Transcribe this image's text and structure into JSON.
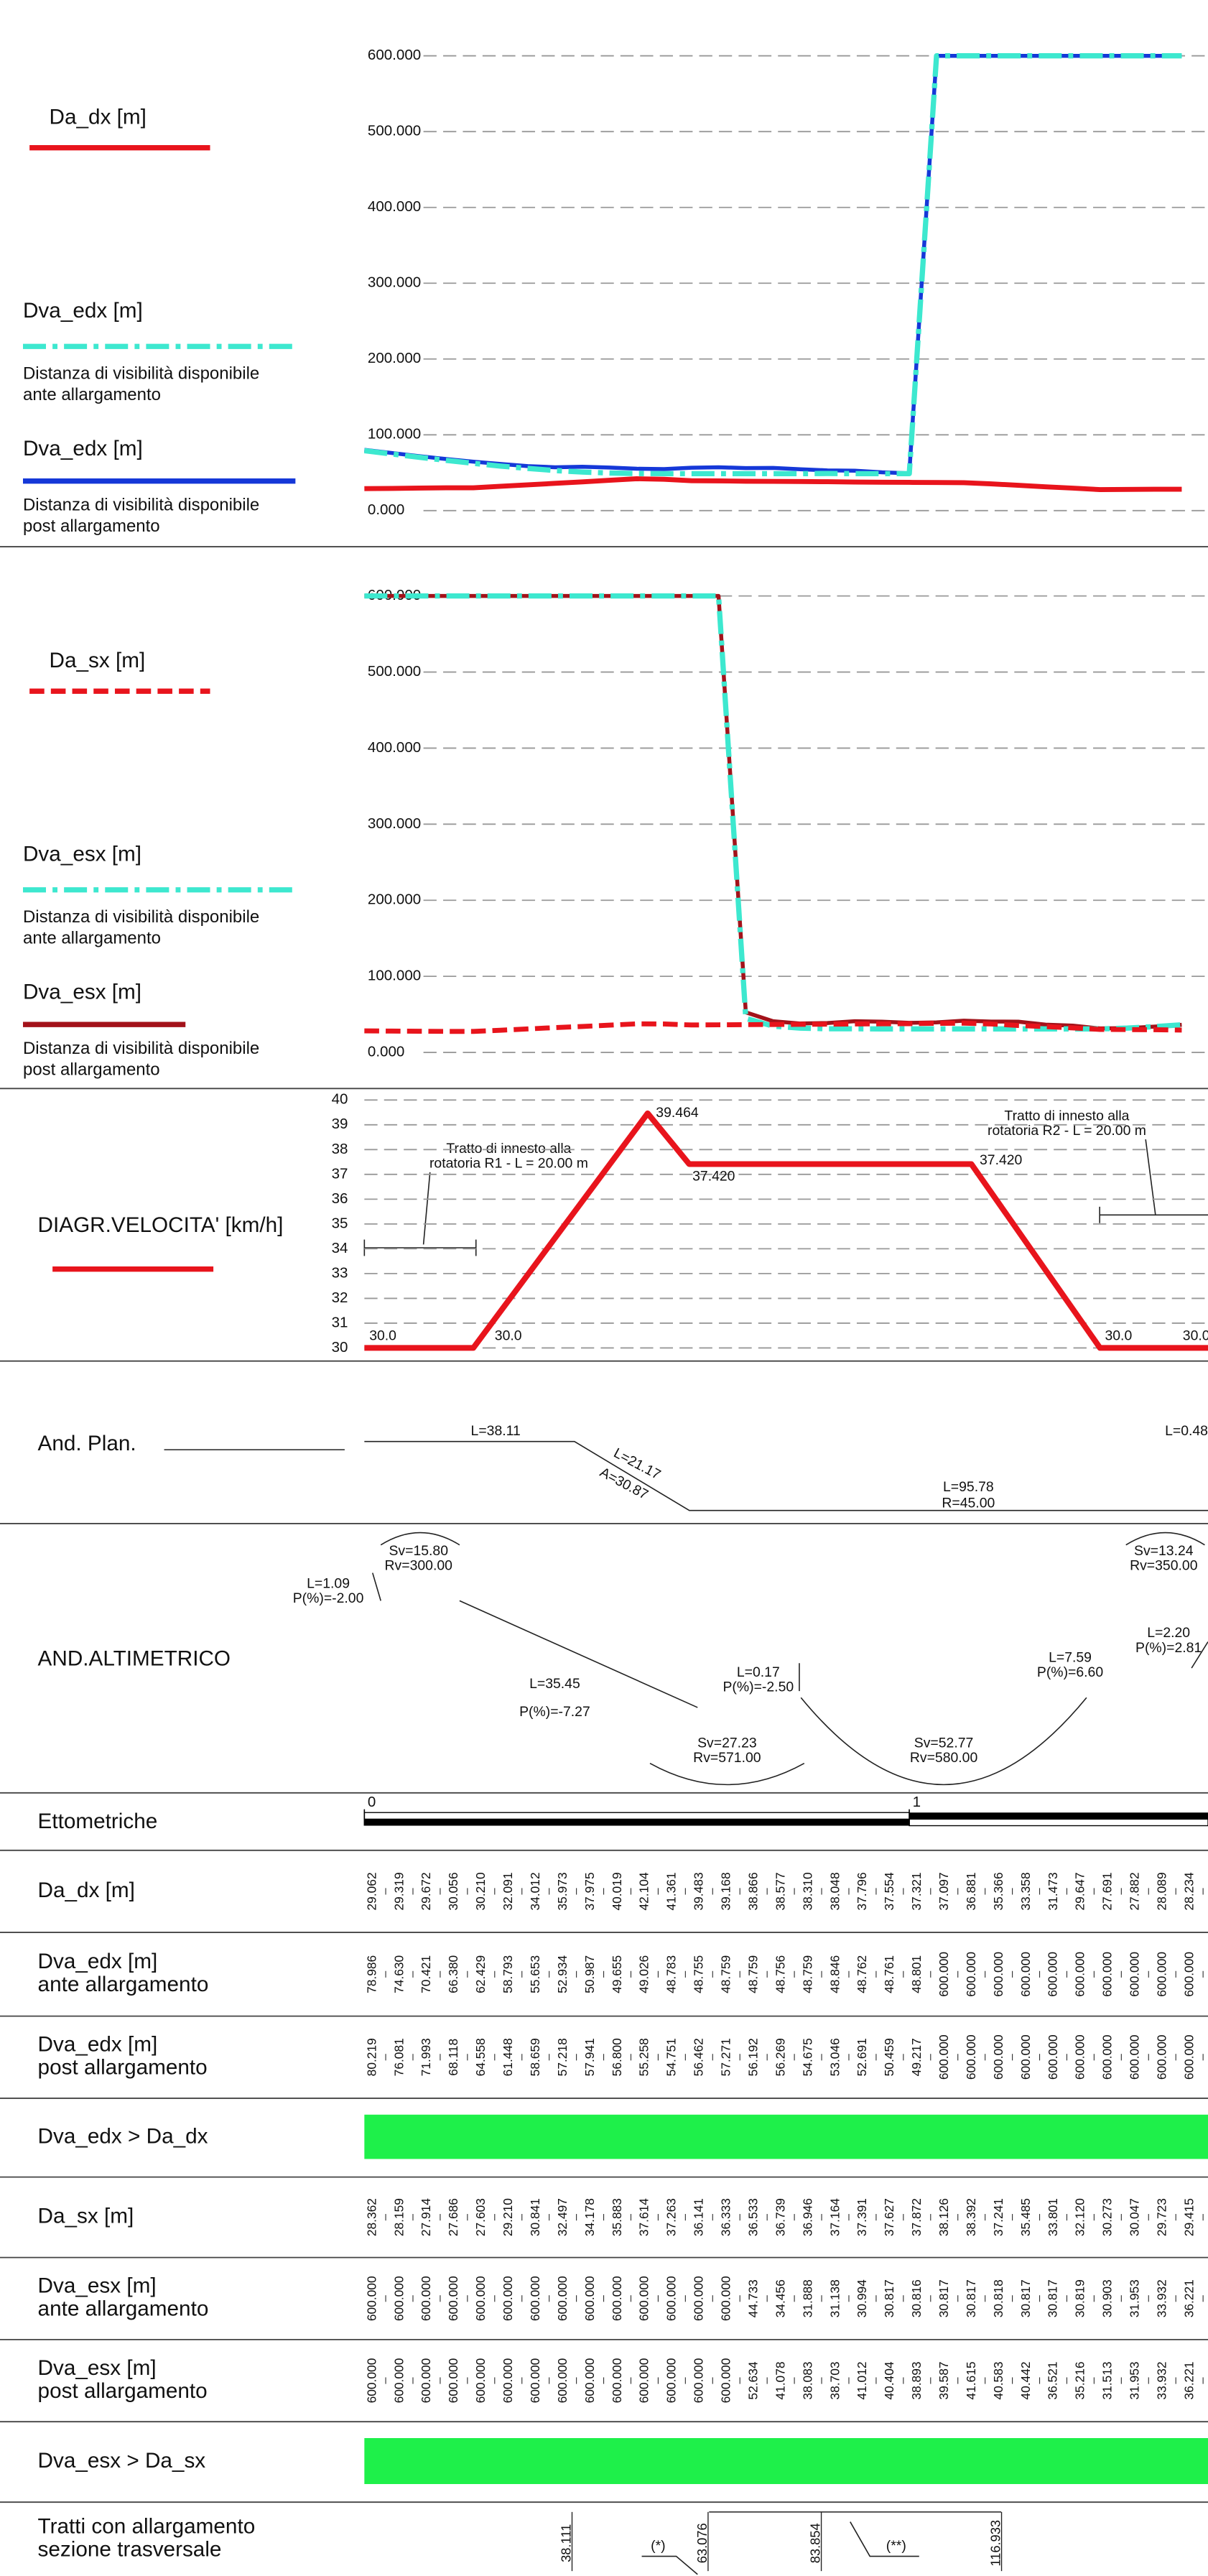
{
  "chart_data": [
    {
      "type": "line",
      "ylim": [
        0,
        600
      ],
      "grid": true,
      "yticks": [
        {
          "value": 0,
          "label": "0.000"
        },
        {
          "value": 100,
          "label": "100.000"
        },
        {
          "value": 200,
          "label": "200.000"
        },
        {
          "value": 300,
          "label": "300.000"
        },
        {
          "value": 400,
          "label": "400.000"
        },
        {
          "value": 500,
          "label": "500.000"
        },
        {
          "value": 600,
          "label": "600.000"
        }
      ],
      "series": [
        {
          "name": "Da_dx [m]",
          "color": "#e8141c",
          "style": "solid",
          "values": [
            29.062,
            29.319,
            29.672,
            30.056,
            30.21,
            32.091,
            34.012,
            35.973,
            37.975,
            40.019,
            42.104,
            41.361,
            39.483,
            39.168,
            38.866,
            38.577,
            38.31,
            38.048,
            37.796,
            37.554,
            37.321,
            37.097,
            36.881,
            35.366,
            33.358,
            31.473,
            29.647,
            27.691,
            27.882,
            28.089,
            28.234
          ],
          "value_labels": [
            "29.062",
            "29.319",
            "29.672",
            "30.056",
            "30.210",
            "32.091",
            "34.012",
            "35.973",
            "37.975",
            "40.019",
            "42.104",
            "41.361",
            "39.483",
            "39.168",
            "38.866",
            "38.577",
            "38.310",
            "38.048",
            "37.796",
            "37.554",
            "37.321",
            "37.097",
            "36.881",
            "35.366",
            "33.358",
            "31.473",
            "29.647",
            "27.691",
            "27.882",
            "28.089",
            "28.234"
          ]
        },
        {
          "name": "Dva_edx [m]",
          "note": [
            "Distanza di visibilità disponibile",
            "ante allargamento"
          ],
          "color": "#3de8cf",
          "style": "dash-dot",
          "values": [
            78.986,
            74.63,
            70.421,
            66.38,
            62.429,
            58.793,
            55.653,
            52.934,
            50.987,
            49.655,
            49.026,
            48.783,
            48.755,
            48.759,
            48.759,
            48.756,
            48.759,
            48.846,
            48.762,
            48.761,
            48.801,
            600,
            600,
            600,
            600,
            600,
            600,
            600,
            600,
            600,
            600
          ],
          "value_labels": [
            "78.986",
            "74.630",
            "70.421",
            "66.380",
            "62.429",
            "58.793",
            "55.653",
            "52.934",
            "50.987",
            "49.655",
            "49.026",
            "48.783",
            "48.755",
            "48.759",
            "48.759",
            "48.756",
            "48.759",
            "48.846",
            "48.762",
            "48.761",
            "48.801",
            "600.000",
            "600.000",
            "600.000",
            "600.000",
            "600.000",
            "600.000",
            "600.000",
            "600.000",
            "600.000",
            "600.000"
          ]
        },
        {
          "name": "Dva_edx [m]",
          "note": [
            "Distanza di visibilità disponibile",
            "post allargamento"
          ],
          "color": "#1538d8",
          "style": "solid",
          "values": [
            80.219,
            76.081,
            71.993,
            68.118,
            64.558,
            61.448,
            58.659,
            57.218,
            57.941,
            56.8,
            55.258,
            54.751,
            56.462,
            57.271,
            56.192,
            56.269,
            54.675,
            53.046,
            52.691,
            50.459,
            49.217,
            600,
            600,
            600,
            600,
            600,
            600,
            600,
            600,
            600,
            600
          ],
          "value_labels": [
            "80.219",
            "76.081",
            "71.993",
            "68.118",
            "64.558",
            "61.448",
            "58.659",
            "57.218",
            "57.941",
            "56.800",
            "55.258",
            "54.751",
            "56.462",
            "57.271",
            "56.192",
            "56.269",
            "54.675",
            "53.046",
            "52.691",
            "50.459",
            "49.217",
            "600.000",
            "600.000",
            "600.000",
            "600.000",
            "600.000",
            "600.000",
            "600.000",
            "600.000",
            "600.000",
            "600.000"
          ]
        }
      ]
    },
    {
      "type": "line",
      "ylim": [
        0,
        600
      ],
      "grid": true,
      "yticks": [
        {
          "value": 0,
          "label": "0.000"
        },
        {
          "value": 100,
          "label": "100.000"
        },
        {
          "value": 200,
          "label": "200.000"
        },
        {
          "value": 300,
          "label": "300.000"
        },
        {
          "value": 400,
          "label": "400.000"
        },
        {
          "value": 500,
          "label": "500.000"
        },
        {
          "value": 600,
          "label": "600.000"
        }
      ],
      "series": [
        {
          "name": "Da_sx [m]",
          "color": "#e8141c",
          "style": "dashed",
          "values": [
            28.362,
            28.159,
            27.914,
            27.686,
            27.603,
            29.21,
            30.841,
            32.497,
            34.178,
            35.883,
            37.614,
            37.263,
            36.141,
            36.333,
            36.533,
            36.739,
            36.946,
            37.164,
            37.391,
            37.627,
            37.872,
            38.126,
            38.392,
            37.241,
            35.485,
            33.801,
            32.12,
            30.273,
            30.047,
            29.723,
            29.415
          ],
          "value_labels": [
            "28.362",
            "28.159",
            "27.914",
            "27.686",
            "27.603",
            "29.210",
            "30.841",
            "32.497",
            "34.178",
            "35.883",
            "37.614",
            "37.263",
            "36.141",
            "36.333",
            "36.533",
            "36.739",
            "36.946",
            "37.164",
            "37.391",
            "37.627",
            "37.872",
            "38.126",
            "38.392",
            "37.241",
            "35.485",
            "33.801",
            "32.120",
            "30.273",
            "30.047",
            "29.723",
            "29.415"
          ]
        },
        {
          "name": "Dva_esx [m]",
          "note": [
            "Distanza di visibilità disponibile",
            "ante allargamento"
          ],
          "color": "#3de8cf",
          "style": "dash-dot",
          "values": [
            600,
            600,
            600,
            600,
            600,
            600,
            600,
            600,
            600,
            600,
            600,
            600,
            600,
            600,
            44.733,
            34.456,
            31.888,
            31.138,
            30.994,
            30.817,
            30.816,
            30.817,
            30.817,
            30.818,
            30.817,
            30.817,
            30.819,
            30.903,
            31.953,
            33.932,
            36.221
          ],
          "value_labels": [
            "600.000",
            "600.000",
            "600.000",
            "600.000",
            "600.000",
            "600.000",
            "600.000",
            "600.000",
            "600.000",
            "600.000",
            "600.000",
            "600.000",
            "600.000",
            "600.000",
            "44.733",
            "34.456",
            "31.888",
            "31.138",
            "30.994",
            "30.817",
            "30.816",
            "30.817",
            "30.817",
            "30.818",
            "30.817",
            "30.817",
            "30.819",
            "30.903",
            "31.953",
            "33.932",
            "36.221"
          ]
        },
        {
          "name": "Dva_esx [m]",
          "note": [
            "Distanza di visibilità disponibile",
            "post allargamento"
          ],
          "color": "#a3121a",
          "style": "solid",
          "values": [
            600,
            600,
            600,
            600,
            600,
            600,
            600,
            600,
            600,
            600,
            600,
            600,
            600,
            600,
            52.634,
            41.078,
            38.083,
            38.703,
            41.012,
            40.404,
            38.893,
            39.587,
            41.615,
            40.583,
            40.442,
            36.521,
            35.216,
            31.513,
            31.953,
            33.932,
            36.221
          ],
          "value_labels": [
            "600.000",
            "600.000",
            "600.000",
            "600.000",
            "600.000",
            "600.000",
            "600.000",
            "600.000",
            "600.000",
            "600.000",
            "600.000",
            "600.000",
            "600.000",
            "600.000",
            "52.634",
            "41.078",
            "38.083",
            "38.703",
            "41.012",
            "40.404",
            "38.893",
            "39.587",
            "41.615",
            "40.583",
            "40.442",
            "36.521",
            "35.216",
            "31.513",
            "31.953",
            "33.932",
            "36.221"
          ]
        }
      ]
    },
    {
      "type": "speed",
      "name": "DIAGR.VELOCITA' [km/h]",
      "color": "#e8141c",
      "grid": true,
      "xlim": [
        0,
        155
      ],
      "x": [
        0,
        20,
        52,
        59.6,
        111.4,
        135,
        155
      ],
      "values": [
        30,
        30,
        39.464,
        37.42,
        37.42,
        30,
        30
      ],
      "value_labels": [
        "30.0",
        "30.0",
        "39.464",
        "37.420",
        "37.420",
        "30.0",
        "30.0"
      ],
      "ylim": [
        30,
        40
      ],
      "yticks": [
        30,
        31,
        32,
        33,
        34,
        35,
        36,
        37,
        38,
        39,
        40
      ],
      "annotations": [
        [
          "Tratto di innesto alla",
          "rotatoria R1 - L = 20.00 m"
        ],
        [
          "Tratto di innesto alla",
          "rotatoria R2 - L = 20.00 m"
        ]
      ]
    }
  ],
  "planimetria": {
    "title": "And. Plan.",
    "labels": [
      [
        "L=38.11"
      ],
      [
        "L=21.17",
        "A=30.87"
      ],
      [
        "L=95.78",
        "R=45.00"
      ],
      [
        "L=0.48"
      ]
    ]
  },
  "altimetria": {
    "title": "AND.ALTIMETRICO",
    "labels": [
      [
        "Sv=15.80",
        "Rv=300.00"
      ],
      [
        "L=1.09",
        "P(%)=-2.00"
      ],
      [
        "L=35.45"
      ],
      [
        "P(%)=-7.27"
      ],
      [
        "L=0.17",
        "P(%)=-2.50"
      ],
      [
        "Sv=27.23",
        "Rv=571.00"
      ],
      [
        "Sv=52.77",
        "Rv=580.00"
      ],
      [
        "L=7.59",
        "P(%)=6.60"
      ],
      [
        "Sv=13.24",
        "Rv=350.00"
      ],
      [
        "L=2.20",
        "P(%)=2.81"
      ]
    ]
  },
  "ettometriche": {
    "title": "Ettometriche",
    "ticks": [
      0,
      1
    ]
  },
  "table": {
    "check_color": "#1ef04a",
    "rows": [
      [
        "Da_dx [m]"
      ],
      [
        "Dva_edx [m]",
        "ante allargamento"
      ],
      [
        "Dva_edx [m]",
        "post allargamento"
      ],
      [
        "Dva_edx > Da_dx"
      ],
      [
        "Da_sx [m]"
      ],
      [
        "Dva_esx [m]",
        "ante allargamento"
      ],
      [
        "Dva_esx [m]",
        "post allargamento"
      ],
      [
        "Dva_esx > Da_sx"
      ],
      [
        "Tratti con allargamento",
        "sezione trasversale"
      ]
    ],
    "tratti": {
      "positions": [
        38.111,
        63.076,
        83.854,
        116.933
      ],
      "notes": [
        "(*)",
        "(**)"
      ]
    }
  }
}
